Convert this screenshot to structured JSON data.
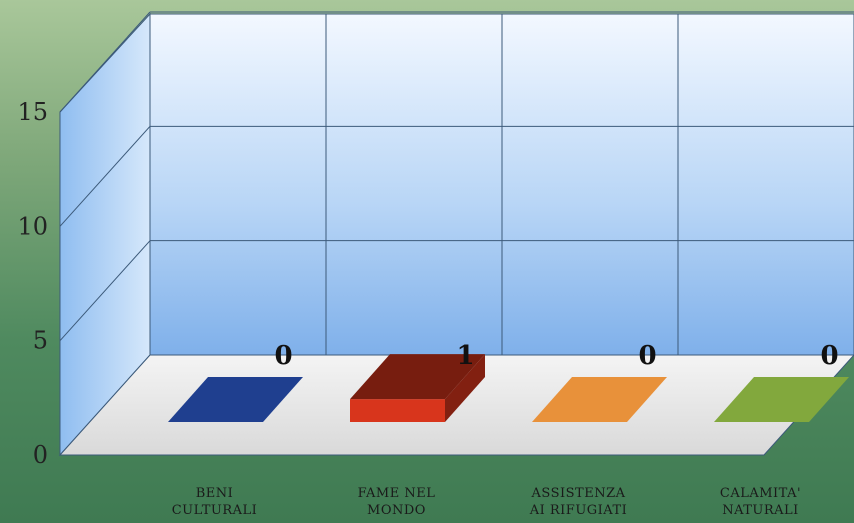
{
  "chart_data": {
    "type": "bar",
    "title": "",
    "xlabel": "",
    "ylabel": "",
    "categories": [
      [
        "BENI",
        "CULTURALI"
      ],
      [
        "FAME NEL",
        "MONDO"
      ],
      [
        "ASSISTENZA",
        "AI RIFUGIATI"
      ],
      [
        "CALAMITA'",
        "NATURALI"
      ]
    ],
    "values": [
      0,
      1,
      0,
      0
    ],
    "colors": [
      "#1f3f8f",
      "#d8351c",
      "#e8913a",
      "#82a83d"
    ],
    "ylim": [
      0,
      15
    ],
    "yticks": [
      0,
      5,
      10,
      15
    ],
    "grid": true,
    "three_d": true
  }
}
